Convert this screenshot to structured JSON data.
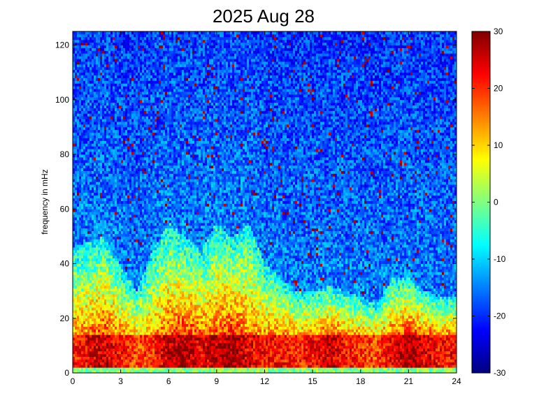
{
  "chart_data": {
    "type": "heatmap",
    "title": "2025 Aug 28",
    "xlabel": "",
    "ylabel": "frequency in mHz",
    "xlim": [
      0,
      24
    ],
    "ylim": [
      0,
      125
    ],
    "x_ticks": [
      "0",
      "3",
      "6",
      "9",
      "12",
      "15",
      "18",
      "21",
      "24"
    ],
    "x_tick_values": [
      0,
      3,
      6,
      9,
      12,
      15,
      18,
      21,
      24
    ],
    "y_ticks": [
      "0",
      "20",
      "40",
      "60",
      "80",
      "100",
      "120"
    ],
    "y_tick_values": [
      0,
      20,
      40,
      60,
      80,
      100,
      120
    ],
    "colorbar": {
      "colormap": "jet",
      "clim": [
        -30,
        30
      ],
      "ticks": [
        "30",
        "20",
        "10",
        "0",
        "-10",
        "-20",
        "-30"
      ],
      "tick_values": [
        30,
        20,
        10,
        0,
        -10,
        -20,
        -30
      ]
    },
    "grid": false,
    "description_of_values": "spectral power (dB) vs time of day (hours) and frequency (mHz); strongest power below ~15 mHz, broad elevated band up to ~50 mHz between 0-3 h and 5-12 h",
    "power_profile_by_hour": {
      "hours": [
        0,
        1,
        2,
        3,
        4,
        5,
        6,
        7,
        8,
        9,
        10,
        11,
        12,
        13,
        14,
        15,
        16,
        17,
        18,
        19,
        20,
        21,
        22,
        23
      ],
      "low_band_peak_db": [
        20,
        24,
        26,
        22,
        18,
        20,
        26,
        28,
        24,
        26,
        28,
        24,
        22,
        22,
        20,
        22,
        26,
        22,
        20,
        18,
        24,
        28,
        24,
        22
      ],
      "elevated_band_top_mhz": [
        45,
        48,
        50,
        40,
        30,
        45,
        55,
        50,
        45,
        55,
        50,
        55,
        40,
        35,
        30,
        30,
        32,
        30,
        28,
        25,
        35,
        35,
        30,
        28
      ]
    }
  }
}
